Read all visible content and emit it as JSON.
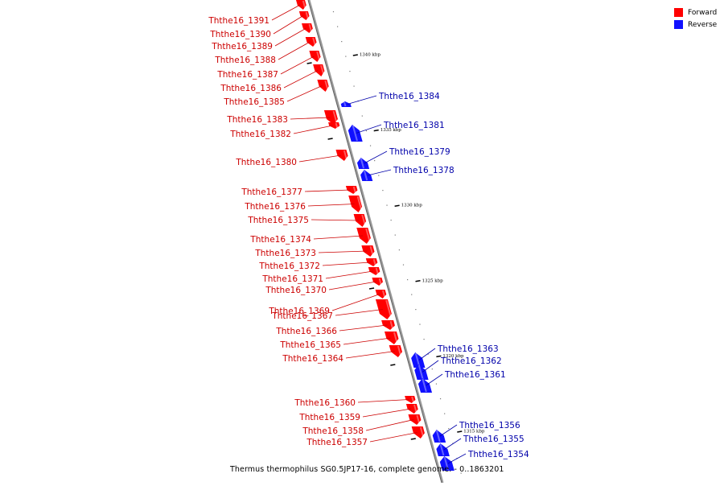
{
  "colors": {
    "forward": "#ff0000",
    "forward_label": "#cc0000",
    "reverse": "#1010ff",
    "reverse_label": "#0000aa",
    "backbone": "#9a9a9a"
  },
  "legend": {
    "forward_label": "Forward",
    "reverse_label": "Reverse"
  },
  "caption": "Thermus thermophilus SG0.5JP17-16, complete genome. - 0..1863201",
  "ticks": [
    {
      "label": "1340 kbp",
      "kbp": 1340
    },
    {
      "label": "1335 kbp",
      "kbp": 1335
    },
    {
      "label": "1330 kbp",
      "kbp": 1330
    },
    {
      "label": "1325 kbp",
      "kbp": 1325
    },
    {
      "label": "1320 kbp",
      "kbp": 1320
    },
    {
      "label": "1315 kbp",
      "kbp": 1315
    }
  ],
  "forward_genes": [
    {
      "label": "Ththe16_1391"
    },
    {
      "label": "Ththe16_1390"
    },
    {
      "label": "Ththe16_1389"
    },
    {
      "label": "Ththe16_1388"
    },
    {
      "label": "Ththe16_1387"
    },
    {
      "label": "Ththe16_1386"
    },
    {
      "label": "Ththe16_1385"
    },
    {
      "label": "Ththe16_1383"
    },
    {
      "label": "Ththe16_1382"
    },
    {
      "label": "Ththe16_1380"
    },
    {
      "label": "Ththe16_1377"
    },
    {
      "label": "Ththe16_1376"
    },
    {
      "label": "Ththe16_1375"
    },
    {
      "label": "Ththe16_1374"
    },
    {
      "label": "Ththe16_1373"
    },
    {
      "label": "Ththe16_1372"
    },
    {
      "label": "Ththe16_1371"
    },
    {
      "label": "Ththe16_1370"
    },
    {
      "label": "Ththe16_1369"
    },
    {
      "label": "Ththe16_1367"
    },
    {
      "label": "Ththe16_1366"
    },
    {
      "label": "Ththe16_1365"
    },
    {
      "label": "Ththe16_1364"
    },
    {
      "label": "Ththe16_1360"
    },
    {
      "label": "Ththe16_1359"
    },
    {
      "label": "Ththe16_1358"
    },
    {
      "label": "Ththe16_1357"
    }
  ],
  "reverse_genes": [
    {
      "label": "Ththe16_1384"
    },
    {
      "label": "Ththe16_1381"
    },
    {
      "label": "Ththe16_1379"
    },
    {
      "label": "Ththe16_1378"
    },
    {
      "label": "Ththe16_1363"
    },
    {
      "label": "Ththe16_1362"
    },
    {
      "label": "Ththe16_1361"
    },
    {
      "label": "Ththe16_1356"
    },
    {
      "label": "Ththe16_1355"
    },
    {
      "label": "Ththe16_1354"
    }
  ]
}
